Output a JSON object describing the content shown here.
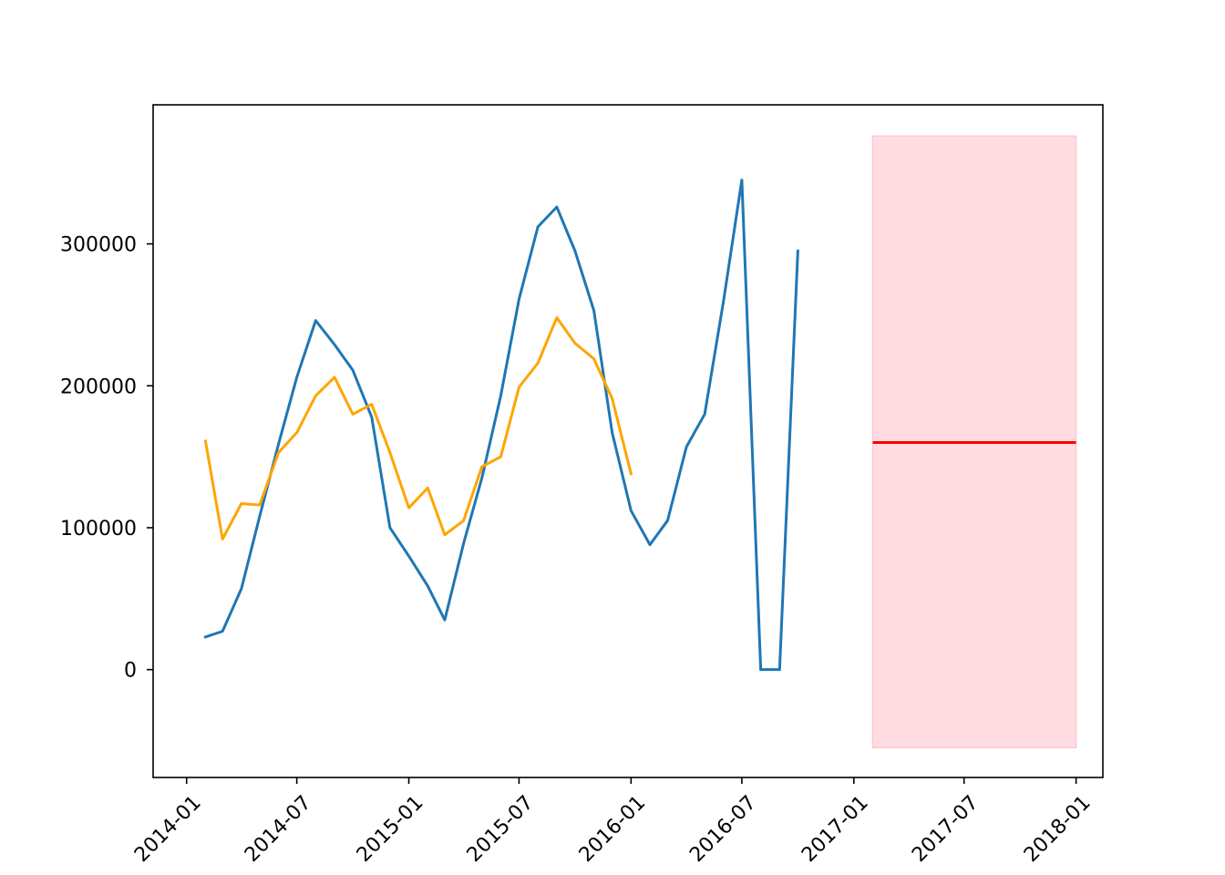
{
  "chart_data": {
    "type": "line",
    "xlim": [
      "2013-11-07",
      "2018-02-14"
    ],
    "ylim": [
      -76000,
      398000
    ],
    "x_ticks": [
      "2014-01",
      "2014-07",
      "2015-01",
      "2015-07",
      "2016-01",
      "2016-07",
      "2017-01",
      "2017-07",
      "2018-01"
    ],
    "y_ticks": [
      0,
      100000,
      200000,
      300000
    ],
    "grid": false,
    "legend": "none",
    "series": [
      {
        "color": "#1f77b4",
        "x": [
          "2014-02-01",
          "2014-03-01",
          "2014-04-01",
          "2014-05-01",
          "2014-06-01",
          "2014-07-01",
          "2014-08-01",
          "2014-09-01",
          "2014-10-01",
          "2014-11-01",
          "2014-12-01",
          "2015-01-01",
          "2015-02-01",
          "2015-03-01",
          "2015-04-01",
          "2015-05-01",
          "2015-06-01",
          "2015-07-01",
          "2015-08-01",
          "2015-09-01",
          "2015-10-01",
          "2015-11-01",
          "2015-12-01",
          "2016-01-01",
          "2016-02-01",
          "2016-03-01",
          "2016-04-01",
          "2016-05-01",
          "2016-06-01",
          "2016-07-01",
          "2016-08-01",
          "2016-09-01",
          "2016-10-01"
        ],
        "values": [
          23000,
          27000,
          57000,
          108000,
          159000,
          206000,
          246000,
          229000,
          211000,
          178000,
          100000,
          80000,
          59000,
          35000,
          89000,
          135000,
          193000,
          261000,
          312000,
          326000,
          295000,
          253000,
          167000,
          112000,
          88000,
          105000,
          157000,
          180000,
          260000,
          345000,
          0,
          0,
          295000
        ]
      },
      {
        "color": "#ffa500",
        "x": [
          "2014-02-01",
          "2014-03-01",
          "2014-04-01",
          "2014-05-01",
          "2014-06-01",
          "2014-07-01",
          "2014-08-01",
          "2014-09-01",
          "2014-10-01",
          "2014-11-01",
          "2014-12-01",
          "2015-01-01",
          "2015-02-01",
          "2015-03-01",
          "2015-04-01",
          "2015-05-01",
          "2015-06-01",
          "2015-07-01",
          "2015-08-01",
          "2015-09-01",
          "2015-10-01",
          "2015-11-01",
          "2015-12-01",
          "2016-01-01"
        ],
        "values": [
          161000,
          92000,
          117000,
          116000,
          153000,
          167000,
          193000,
          206000,
          180000,
          187000,
          153000,
          114000,
          128000,
          95000,
          105000,
          143000,
          150000,
          199000,
          216000,
          248000,
          230000,
          219000,
          191000,
          138000
        ]
      }
    ],
    "forecast": {
      "line_color": "#ff0000",
      "band_color": "#ffdde3",
      "x_start": "2017-02-01",
      "x_end": "2018-01-01",
      "value": 160000,
      "lower": -55000,
      "upper": 376000
    }
  }
}
